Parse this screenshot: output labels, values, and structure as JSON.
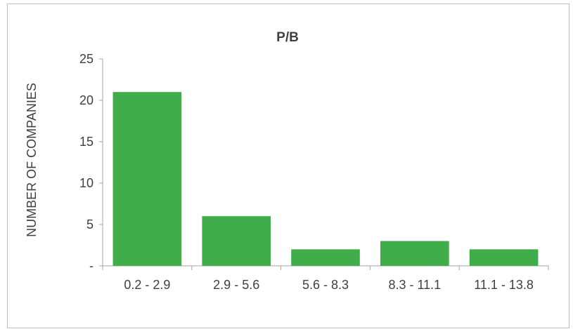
{
  "chart_data": {
    "type": "bar",
    "title": "P/B",
    "xlabel": "",
    "ylabel": "NUMBER OF COMPANIES",
    "categories": [
      "0.2 - 2.9",
      "2.9 - 5.6",
      "5.6 - 8.3",
      "8.3 - 11.1",
      "11.1 - 13.8"
    ],
    "values": [
      21,
      6,
      2,
      3,
      2
    ],
    "ylim": [
      0,
      25
    ],
    "yticks": [
      0,
      5,
      10,
      15,
      20,
      25
    ],
    "ytick_labels": [
      "-",
      "5",
      "10",
      "15",
      "20",
      "25"
    ],
    "grid": false,
    "legend": "none",
    "bar_color": "#3fad49"
  }
}
